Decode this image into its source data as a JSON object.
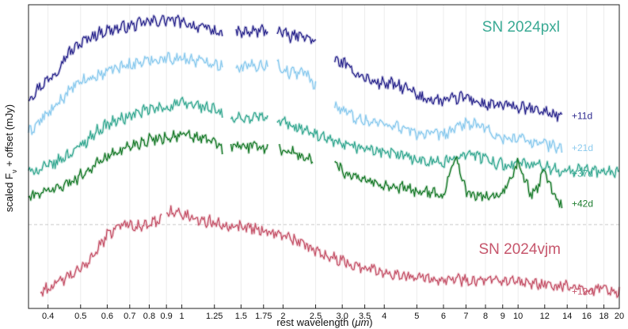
{
  "chart_data": {
    "type": "line",
    "xlabel_prefix": "rest wavelength (",
    "xlabel_unit": "μm",
    "xlabel_suffix": ")",
    "ylabel_prefix": "scaled F",
    "ylabel_sub": "ν",
    "ylabel_suffix": " + offset (mJy)",
    "x_scale": "log",
    "xlim": [
      0.35,
      20
    ],
    "x_ticks": [
      0.4,
      0.5,
      0.6,
      0.7,
      0.8,
      0.9,
      1,
      1.25,
      1.5,
      1.75,
      2,
      2.5,
      3.0,
      3.5,
      4,
      5,
      6,
      7,
      8,
      9,
      10,
      12,
      14,
      16,
      18,
      20
    ],
    "x_tick_labels": [
      "0.4",
      "0.5",
      "0.6",
      "0.7",
      "0.8",
      "0.9",
      "1",
      "1.25",
      "1.5",
      "1.75",
      "2",
      "2.5",
      "3.0",
      "3.5",
      "4",
      "5",
      "6",
      "7",
      "8",
      "9",
      "10",
      "12",
      "14",
      "16",
      "18",
      "20"
    ],
    "grid": "vertical",
    "groups": [
      {
        "title": "SN 2024pxl",
        "color": "#3aaa94"
      },
      {
        "title": "SN 2024vjm",
        "color": "#c6566c"
      }
    ],
    "series": [
      {
        "name": "+11d",
        "group": "SN 2024pxl",
        "color": "#2e2a8f",
        "segments": [
          {
            "x": [
              0.35,
              0.38,
              0.42,
              0.45,
              0.5,
              0.55,
              0.6,
              0.7,
              0.8,
              0.9,
              1.0,
              1.1,
              1.25,
              1.32
            ],
            "y": [
              2.0,
              2.3,
              2.6,
              3.0,
              3.3,
              3.5,
              3.6,
              3.7,
              3.8,
              3.85,
              3.8,
              3.7,
              3.6,
              3.5
            ]
          },
          {
            "x": [
              1.45,
              1.55,
              1.65,
              1.75,
              1.8
            ],
            "y": [
              3.55,
              3.55,
              3.58,
              3.6,
              3.6
            ]
          },
          {
            "x": [
              1.92,
              2.1,
              2.3,
              2.5
            ],
            "y": [
              3.6,
              3.45,
              3.5,
              3.3
            ]
          },
          {
            "x": [
              2.85,
              3.0,
              3.3,
              3.7,
              4.2,
              4.8,
              5.0,
              6.0,
              7.0,
              8.0,
              9.0,
              10.0,
              11.0,
              12.0,
              13.5
            ],
            "y": [
              2.9,
              2.85,
              2.6,
              2.4,
              2.35,
              2.2,
              2.05,
              1.95,
              2.05,
              1.85,
              1.85,
              1.8,
              1.75,
              1.7,
              1.6
            ]
          }
        ]
      },
      {
        "name": "+21d",
        "group": "SN 2024pxl",
        "color": "#8dcbee",
        "segments": [
          {
            "x": [
              0.35,
              0.38,
              0.42,
              0.45,
              0.5,
              0.55,
              0.6,
              0.7,
              0.8,
              0.9,
              1.0,
              1.1,
              1.25,
              1.32
            ],
            "y": [
              1.2,
              1.5,
              1.8,
              2.1,
              2.4,
              2.5,
              2.65,
              2.8,
              2.9,
              2.95,
              2.95,
              2.9,
              2.85,
              2.75
            ]
          },
          {
            "x": [
              1.45,
              1.55,
              1.65,
              1.75,
              1.8
            ],
            "y": [
              2.75,
              2.75,
              2.78,
              2.8,
              2.8
            ]
          },
          {
            "x": [
              1.92,
              2.1,
              2.3,
              2.5
            ],
            "y": [
              2.8,
              2.6,
              2.65,
              2.3
            ]
          },
          {
            "x": [
              2.85,
              3.0,
              3.3,
              3.7,
              4.2,
              5.0,
              6.0,
              7.0,
              8.0,
              9.0,
              10.0,
              11.0,
              12.0,
              13.5
            ],
            "y": [
              1.85,
              1.75,
              1.55,
              1.45,
              1.4,
              1.2,
              1.15,
              1.45,
              1.3,
              1.05,
              1.1,
              1.0,
              0.95,
              0.85
            ]
          }
        ]
      },
      {
        "name": "+37d",
        "group": "SN 2024pxl",
        "color": "#3aaa94",
        "segments": [
          {
            "x": [
              0.35,
              0.38,
              0.42,
              0.45,
              0.5,
              0.55,
              0.6,
              0.7,
              0.8,
              0.9,
              1.0,
              1.1,
              1.25,
              1.32
            ],
            "y": [
              0.3,
              0.35,
              0.5,
              0.65,
              0.9,
              1.2,
              1.4,
              1.6,
              1.75,
              1.8,
              1.9,
              1.85,
              1.75,
              1.6
            ]
          },
          {
            "x": [
              1.4,
              1.5,
              1.6,
              1.7,
              1.8
            ],
            "y": [
              1.5,
              1.55,
              1.55,
              1.6,
              1.5
            ]
          },
          {
            "x": [
              1.92,
              2.2,
              2.5,
              3.0,
              3.5,
              4.0,
              5.0,
              6.0,
              7.0,
              8.0,
              9.0,
              10.0,
              12.0,
              14.0,
              16.0,
              18.0,
              20.0
            ],
            "y": [
              1.5,
              1.35,
              1.15,
              0.9,
              0.85,
              0.75,
              0.6,
              0.5,
              0.75,
              0.6,
              0.45,
              0.5,
              0.4,
              0.3,
              0.35,
              0.3,
              0.25
            ]
          }
        ]
      },
      {
        "name": "+42d",
        "group": "SN 2024pxl",
        "color": "#1d7d2e",
        "segments": [
          {
            "x": [
              0.35,
              0.38,
              0.42,
              0.45,
              0.5,
              0.55,
              0.6,
              0.7,
              0.8,
              0.9,
              1.0,
              1.1,
              1.25,
              1.32
            ],
            "y": [
              -0.3,
              -0.2,
              -0.1,
              0.0,
              0.2,
              0.45,
              0.65,
              0.9,
              1.05,
              1.1,
              1.15,
              1.1,
              1.0,
              0.8
            ]
          },
          {
            "x": [
              1.4,
              1.5,
              1.6,
              1.7,
              1.8
            ],
            "y": [
              0.9,
              0.9,
              0.88,
              0.9,
              0.85
            ]
          },
          {
            "x": [
              1.95,
              2.1,
              2.3,
              2.45
            ],
            "y": [
              0.85,
              0.75,
              0.65,
              0.55
            ]
          },
          {
            "x": [
              2.85,
              3.0,
              3.3,
              3.7,
              4.2,
              5.0,
              6.0,
              6.5,
              7.0,
              8.0,
              9.0,
              10.0,
              11.0,
              12.0,
              13.0,
              13.5
            ],
            "y": [
              0.55,
              0.3,
              0.2,
              0.05,
              -0.05,
              -0.15,
              -0.25,
              0.7,
              -0.2,
              -0.3,
              -0.25,
              0.5,
              -0.3,
              0.3,
              -0.35,
              -0.45
            ]
          }
        ]
      },
      {
        "name": "+12d",
        "group": "SN 2024vjm",
        "color": "#c6566c",
        "segments": [
          {
            "x": [
              0.38,
              0.42,
              0.45,
              0.5,
              0.55,
              0.6,
              0.65,
              0.7,
              0.75,
              0.8,
              0.85,
              0.87
            ],
            "y": [
              -2.5,
              -2.35,
              -2.2,
              -2.0,
              -1.6,
              -1.2,
              -0.95,
              -0.9,
              -1.0,
              -0.95,
              -0.85,
              -0.8
            ]
          },
          {
            "x": [
              0.9,
              0.95,
              1.0,
              1.1,
              1.25,
              1.4,
              1.6,
              1.8,
              2.0,
              2.3,
              2.6,
              3.0,
              3.5,
              4.0,
              5.0,
              6.0,
              8.0,
              10.0,
              12.0,
              14.0,
              16.0,
              18.0,
              20.0
            ],
            "y": [
              -0.6,
              -0.65,
              -0.7,
              -0.8,
              -0.9,
              -0.95,
              -1.0,
              -1.1,
              -1.2,
              -1.4,
              -1.6,
              -1.8,
              -1.95,
              -2.05,
              -2.15,
              -2.2,
              -2.25,
              -2.3,
              -2.35,
              -2.4,
              -2.45,
              -2.45,
              -2.5
            ]
          }
        ]
      }
    ]
  }
}
